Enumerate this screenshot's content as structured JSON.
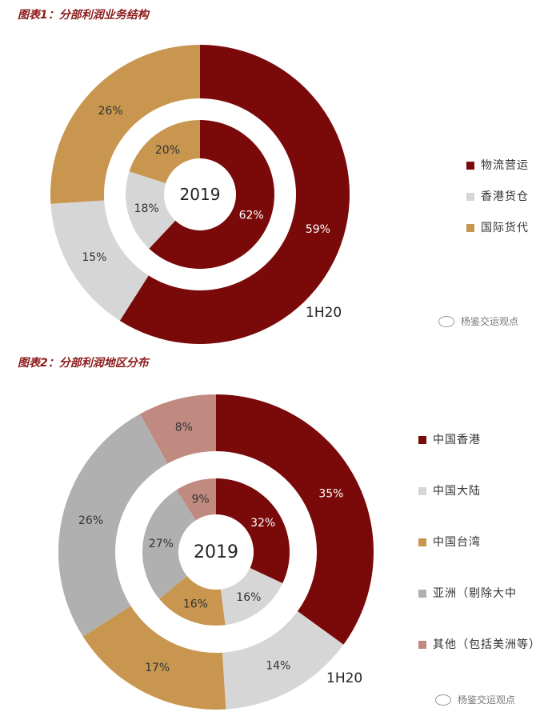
{
  "figure1": {
    "title": "图表1：分部利润业务结构",
    "legend": [
      {
        "label": "物流营运",
        "color": "#7a0a0a"
      },
      {
        "label": "香港货仓",
        "color": "#d6d6d6"
      },
      {
        "label": "国际货代",
        "color": "#c8964e"
      }
    ],
    "watermark": "杨鉴交运观点"
  },
  "figure2": {
    "title": "图表2：分部利润地区分布",
    "legend": [
      {
        "label": "中国香港",
        "color": "#7a0a0a"
      },
      {
        "label": "中国大陆",
        "color": "#d6d6d6"
      },
      {
        "label": "中国台湾",
        "color": "#c8964e"
      },
      {
        "label": "亚洲（剔除大中",
        "color": "#b0b0b0"
      },
      {
        "label": "其他（包括美洲等）",
        "color": "#c08a80"
      }
    ],
    "watermark": "杨鉴交运观点"
  },
  "chart_data": [
    {
      "type": "pie",
      "title": "图表1：分部利润业务结构",
      "center_label": "2019",
      "outer_label": "1H20",
      "categories": [
        "物流营运",
        "香港货仓",
        "国际货代"
      ],
      "colors": [
        "#7a0a0a",
        "#d6d6d6",
        "#c8964e"
      ],
      "series": [
        {
          "name": "2019",
          "ring": "inner",
          "values": [
            62,
            18,
            20
          ],
          "labels": [
            "62%",
            "18%",
            "20%"
          ]
        },
        {
          "name": "1H20",
          "ring": "outer",
          "values": [
            59,
            15,
            26
          ],
          "labels": [
            "59%",
            "15%",
            "26%"
          ]
        }
      ]
    },
    {
      "type": "pie",
      "title": "图表2：分部利润地区分布",
      "center_label": "2019",
      "outer_label": "1H20",
      "categories": [
        "中国香港",
        "中国大陆",
        "中国台湾",
        "亚洲（剔除大中",
        "其他（包括美洲等）"
      ],
      "colors": [
        "#7a0a0a",
        "#d6d6d6",
        "#c8964e",
        "#b0b0b0",
        "#c08a80"
      ],
      "series": [
        {
          "name": "2019",
          "ring": "inner",
          "values": [
            32,
            16,
            16,
            27,
            9
          ],
          "labels": [
            "32%",
            "16%",
            "16%",
            "27%",
            "9%"
          ]
        },
        {
          "name": "1H20",
          "ring": "outer",
          "values": [
            35,
            14,
            17,
            26,
            8
          ],
          "labels": [
            "35%",
            "14%",
            "17%",
            "26%",
            "8%"
          ]
        }
      ]
    }
  ]
}
